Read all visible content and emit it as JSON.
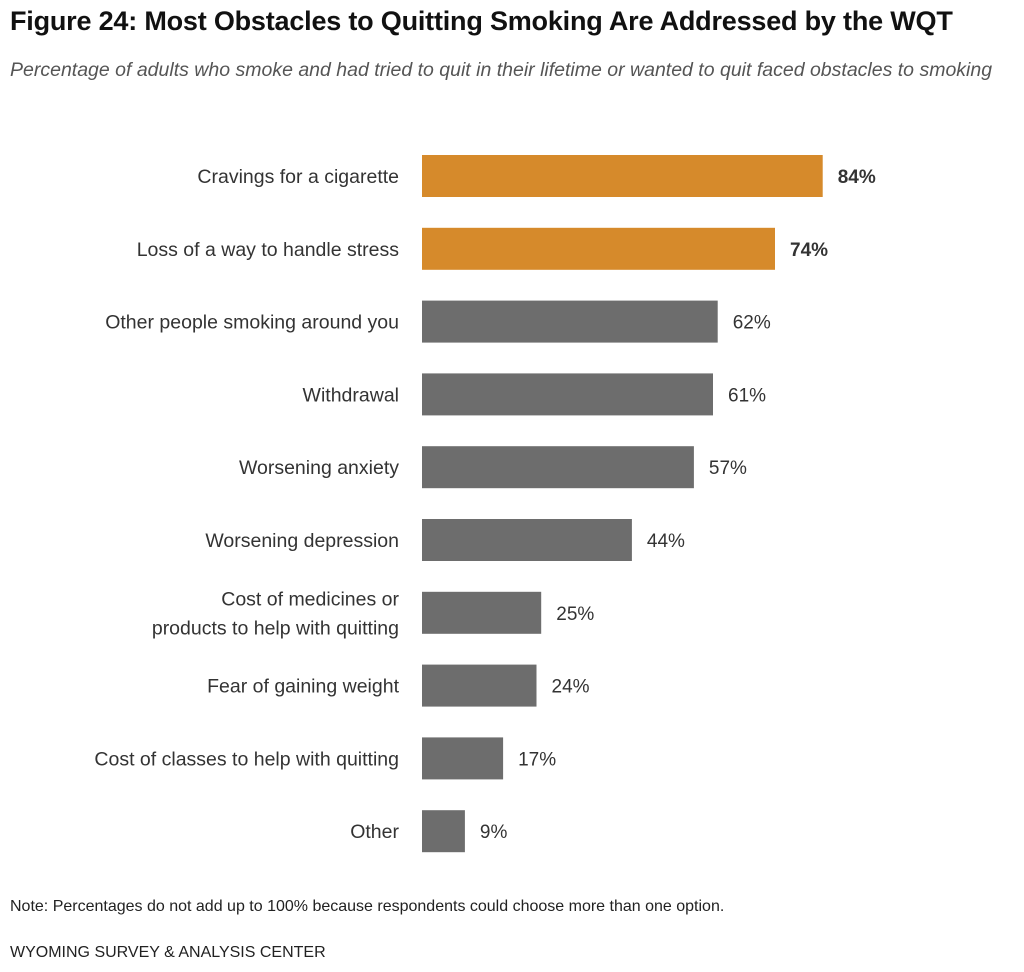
{
  "title": "Figure 24: Most Obstacles to Quitting Smoking Are Addressed by the WQT",
  "subtitle": "Percentage of adults who smoke and had tried to quit in their lifetime or wanted to quit faced obstacles to smoking",
  "note": "Note: Percentages do not add up to 100% because respondents could choose more than one option.",
  "source": "WYOMING SURVEY & ANALYSIS CENTER",
  "colors": {
    "highlight": "#D68A2B",
    "default": "#6D6D6D"
  },
  "chart_data": {
    "type": "bar",
    "orientation": "horizontal",
    "categories": [
      [
        "Cravings for a cigarette"
      ],
      [
        "Loss of a way to handle stress"
      ],
      [
        "Other people smoking around you"
      ],
      [
        "Withdrawal"
      ],
      [
        "Worsening anxiety"
      ],
      [
        "Worsening depression"
      ],
      [
        "Cost of medicines or",
        "products to help with quitting"
      ],
      [
        "Fear of gaining weight"
      ],
      [
        "Cost of classes to help with quitting"
      ],
      [
        "Other"
      ]
    ],
    "values": [
      84,
      74,
      62,
      61,
      57,
      44,
      25,
      24,
      17,
      9
    ],
    "value_labels": [
      "84%",
      "74%",
      "62%",
      "61%",
      "57%",
      "44%",
      "25%",
      "24%",
      "17%",
      "9%"
    ],
    "highlighted": [
      true,
      true,
      false,
      false,
      false,
      false,
      false,
      false,
      false,
      false
    ],
    "unit": "%",
    "xlim": [
      0,
      100
    ],
    "grid": false,
    "legend": "none"
  }
}
